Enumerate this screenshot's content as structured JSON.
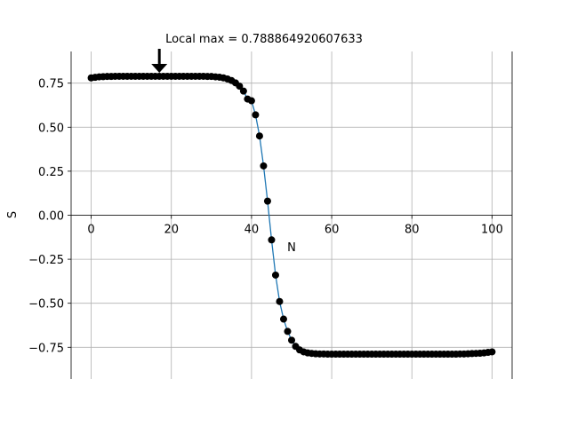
{
  "chart_data": {
    "type": "scatter",
    "title": "",
    "xlabel": "N",
    "ylabel": "S",
    "xlim": [
      -5,
      105
    ],
    "ylim": [
      -0.93,
      0.93
    ],
    "xticks": [
      0,
      20,
      40,
      60,
      80,
      100
    ],
    "yticks": [
      -0.75,
      -0.5,
      -0.25,
      0.0,
      0.25,
      0.5,
      0.75
    ],
    "xtick_labels": [
      "0",
      "20",
      "40",
      "60",
      "80",
      "100"
    ],
    "ytick_labels": [
      "−0.75",
      "−0.50",
      "−0.25",
      "0.00",
      "0.25",
      "0.50",
      "0.75"
    ],
    "grid": true,
    "axes_spines": "centered at y = 0",
    "annotation": {
      "text": "Local max = 0.788864920607633",
      "arrow_points_to": {
        "x": 17,
        "y": 0.789
      }
    },
    "series": [
      {
        "marker": "circle",
        "marker_color": "#000000",
        "line_color": "#1f77b4",
        "x": [
          0,
          1,
          2,
          3,
          4,
          5,
          6,
          7,
          8,
          9,
          10,
          11,
          12,
          13,
          14,
          15,
          16,
          17,
          18,
          19,
          20,
          21,
          22,
          23,
          24,
          25,
          26,
          27,
          28,
          29,
          30,
          31,
          32,
          33,
          34,
          35,
          36,
          37,
          38,
          39,
          40,
          41,
          42,
          43,
          44,
          45,
          46,
          47,
          48,
          49,
          50,
          51,
          52,
          53,
          54,
          55,
          56,
          57,
          58,
          59,
          60,
          61,
          62,
          63,
          64,
          65,
          66,
          67,
          68,
          69,
          70,
          71,
          72,
          73,
          74,
          75,
          76,
          77,
          78,
          79,
          80,
          81,
          82,
          83,
          84,
          85,
          86,
          87,
          88,
          89,
          90,
          91,
          92,
          93,
          94,
          95,
          96,
          97,
          98,
          99,
          100
        ],
        "y": [
          0.78,
          0.783,
          0.786,
          0.787,
          0.788,
          0.788,
          0.789,
          0.789,
          0.789,
          0.789,
          0.789,
          0.789,
          0.789,
          0.789,
          0.789,
          0.789,
          0.789,
          0.789,
          0.789,
          0.789,
          0.789,
          0.789,
          0.789,
          0.789,
          0.789,
          0.789,
          0.789,
          0.789,
          0.789,
          0.788,
          0.788,
          0.786,
          0.784,
          0.78,
          0.774,
          0.765,
          0.752,
          0.733,
          0.705,
          0.66,
          0.65,
          0.57,
          0.45,
          0.28,
          0.08,
          -0.14,
          -0.34,
          -0.49,
          -0.59,
          -0.66,
          -0.71,
          -0.745,
          -0.765,
          -0.776,
          -0.782,
          -0.785,
          -0.787,
          -0.788,
          -0.788,
          -0.789,
          -0.789,
          -0.789,
          -0.789,
          -0.789,
          -0.789,
          -0.789,
          -0.789,
          -0.789,
          -0.789,
          -0.789,
          -0.789,
          -0.789,
          -0.789,
          -0.789,
          -0.789,
          -0.789,
          -0.789,
          -0.789,
          -0.789,
          -0.789,
          -0.789,
          -0.789,
          -0.789,
          -0.789,
          -0.789,
          -0.789,
          -0.789,
          -0.789,
          -0.789,
          -0.789,
          -0.789,
          -0.789,
          -0.788,
          -0.788,
          -0.787,
          -0.786,
          -0.785,
          -0.784,
          -0.782,
          -0.779,
          -0.776
        ]
      }
    ]
  }
}
